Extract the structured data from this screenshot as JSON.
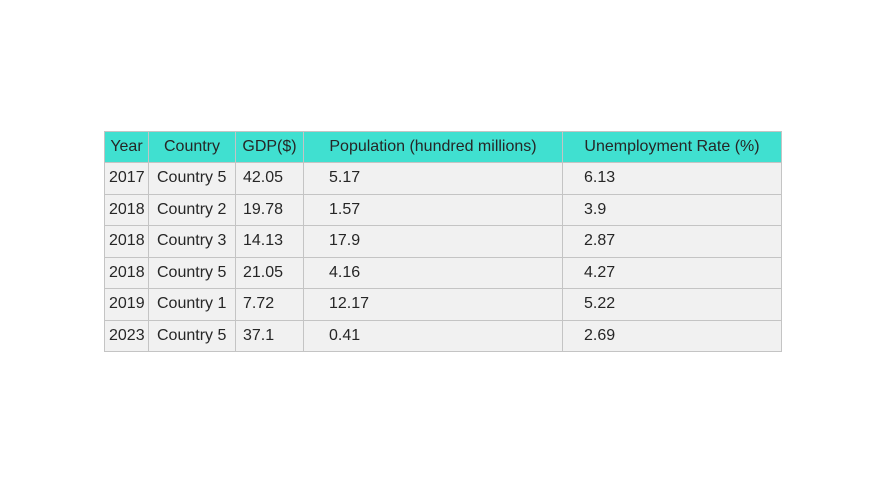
{
  "chart_data": {
    "type": "table",
    "columns": [
      "Year",
      "Country",
      "GDP($)",
      "Population (hundred millions)",
      "Unemployment Rate (%)"
    ],
    "rows": [
      [
        "2017",
        "Country 5",
        "42.05",
        "5.17",
        "6.13"
      ],
      [
        "2018",
        "Country 2",
        "19.78",
        "1.57",
        "3.9"
      ],
      [
        "2018",
        "Country 3",
        "14.13",
        "17.9",
        "2.87"
      ],
      [
        "2018",
        "Country 5",
        "21.05",
        "4.16",
        "4.27"
      ],
      [
        "2019",
        "Country 1",
        "7.72",
        "12.17",
        "5.22"
      ],
      [
        "2023",
        "Country 5",
        "37.1",
        "0.41",
        "2.69"
      ]
    ],
    "colors": {
      "header_bg": "#40e0d0",
      "cell_bg": "#f1f1f1",
      "border": "#c4c4c4"
    }
  }
}
